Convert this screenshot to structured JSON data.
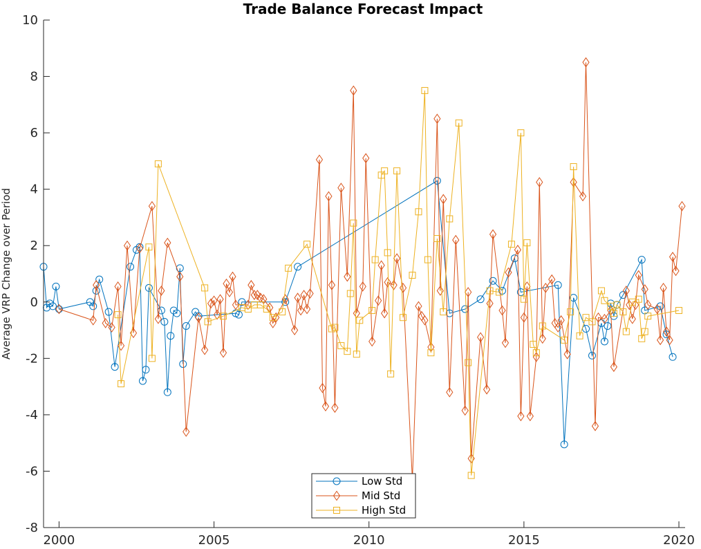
{
  "chart_data": {
    "type": "line",
    "title": "Trade Balance Forecast Impact",
    "xlabel": "",
    "ylabel": "Average VRP Change over Period",
    "xlim": [
      1999.5,
      2020.2
    ],
    "ylim": [
      -8,
      10
    ],
    "x_ticks": [
      2000,
      2005,
      2010,
      2015,
      2020
    ],
    "x_tick_labels": [
      "2000",
      "2005",
      "2010",
      "2015",
      "2020"
    ],
    "y_ticks": [
      -8,
      -6,
      -4,
      -2,
      0,
      2,
      4,
      6,
      8,
      10
    ],
    "y_tick_labels": [
      "-8",
      "-6",
      "-4",
      "-2",
      "0",
      "2",
      "4",
      "6",
      "8",
      "10"
    ],
    "grid": false,
    "legend_position": "bottom-center",
    "series": [
      {
        "name": "Low Std",
        "color": "#0072BD",
        "marker": "circle",
        "points": [
          [
            1999.5,
            1.25
          ],
          [
            1999.6,
            -0.2
          ],
          [
            1999.7,
            -0.05
          ],
          [
            1999.8,
            -0.15
          ],
          [
            1999.9,
            0.55
          ],
          [
            2000.0,
            -0.25
          ],
          [
            2001.0,
            0.0
          ],
          [
            2001.1,
            -0.15
          ],
          [
            2001.2,
            0.4
          ],
          [
            2001.3,
            0.8
          ],
          [
            2001.6,
            -0.35
          ],
          [
            2001.8,
            -2.3
          ],
          [
            2002.3,
            1.25
          ],
          [
            2002.5,
            1.85
          ],
          [
            2002.6,
            1.95
          ],
          [
            2002.7,
            -2.8
          ],
          [
            2002.8,
            -2.4
          ],
          [
            2002.9,
            0.5
          ],
          [
            2003.3,
            -0.3
          ],
          [
            2003.4,
            -0.7
          ],
          [
            2003.5,
            -3.2
          ],
          [
            2003.6,
            -1.2
          ],
          [
            2003.7,
            -0.3
          ],
          [
            2003.8,
            -0.4
          ],
          [
            2003.9,
            1.2
          ],
          [
            2004.0,
            -2.2
          ],
          [
            2004.1,
            -0.85
          ],
          [
            2004.4,
            -0.35
          ],
          [
            2004.5,
            -0.5
          ],
          [
            2005.7,
            -0.4
          ],
          [
            2005.8,
            -0.45
          ],
          [
            2005.9,
            0.0
          ],
          [
            2007.3,
            0.0
          ],
          [
            2007.7,
            1.25
          ],
          [
            2012.2,
            4.3
          ],
          [
            2012.6,
            -0.4
          ],
          [
            2013.1,
            -0.25
          ],
          [
            2013.6,
            0.1
          ],
          [
            2014.0,
            0.75
          ],
          [
            2014.3,
            0.4
          ],
          [
            2014.7,
            1.55
          ],
          [
            2014.9,
            0.35
          ],
          [
            2016.1,
            0.6
          ],
          [
            2016.3,
            -5.05
          ],
          [
            2016.6,
            0.15
          ],
          [
            2017.0,
            -0.95
          ],
          [
            2017.2,
            -1.9
          ],
          [
            2017.5,
            -0.75
          ],
          [
            2017.6,
            -1.4
          ],
          [
            2017.7,
            -0.85
          ],
          [
            2017.8,
            -0.05
          ],
          [
            2017.9,
            -0.5
          ],
          [
            2018.0,
            -0.1
          ],
          [
            2018.2,
            0.25
          ],
          [
            2018.8,
            1.5
          ],
          [
            2018.9,
            -0.3
          ],
          [
            2019.4,
            -0.15
          ],
          [
            2019.6,
            -1.15
          ],
          [
            2019.8,
            -1.95
          ]
        ]
      },
      {
        "name": "Mid Std",
        "color": "#D95319",
        "marker": "diamond",
        "points": [
          [
            2000.0,
            -0.25
          ],
          [
            2001.1,
            -0.65
          ],
          [
            2001.2,
            0.6
          ],
          [
            2001.5,
            -0.75
          ],
          [
            2001.7,
            -0.9
          ],
          [
            2001.9,
            0.55
          ],
          [
            2002.0,
            -1.55
          ],
          [
            2002.2,
            2.0
          ],
          [
            2002.4,
            -1.1
          ],
          [
            2002.6,
            1.9
          ],
          [
            2003.0,
            3.4
          ],
          [
            2003.2,
            -0.6
          ],
          [
            2003.3,
            0.4
          ],
          [
            2003.5,
            2.1
          ],
          [
            2003.9,
            0.9
          ],
          [
            2004.1,
            -4.6
          ],
          [
            2004.5,
            -0.55
          ],
          [
            2004.7,
            -1.7
          ],
          [
            2004.9,
            -0.05
          ],
          [
            2005.0,
            0.05
          ],
          [
            2005.1,
            -0.45
          ],
          [
            2005.2,
            0.1
          ],
          [
            2005.3,
            -1.8
          ],
          [
            2005.4,
            0.65
          ],
          [
            2005.5,
            0.35
          ],
          [
            2005.6,
            0.9
          ],
          [
            2005.7,
            -0.1
          ],
          [
            2006.1,
            -0.1
          ],
          [
            2006.2,
            0.6
          ],
          [
            2006.3,
            0.25
          ],
          [
            2006.4,
            0.25
          ],
          [
            2006.5,
            0.15
          ],
          [
            2006.6,
            0.1
          ],
          [
            2006.8,
            -0.2
          ],
          [
            2006.9,
            -0.75
          ],
          [
            2007.0,
            -0.55
          ],
          [
            2007.3,
            0.1
          ],
          [
            2007.6,
            -1.0
          ],
          [
            2007.7,
            0.15
          ],
          [
            2007.8,
            -0.3
          ],
          [
            2007.9,
            0.25
          ],
          [
            2008.0,
            -0.25
          ],
          [
            2008.1,
            0.3
          ],
          [
            2008.4,
            5.05
          ],
          [
            2008.5,
            -3.05
          ],
          [
            2008.6,
            -3.7
          ],
          [
            2008.7,
            3.75
          ],
          [
            2008.8,
            0.6
          ],
          [
            2008.9,
            -3.75
          ],
          [
            2009.1,
            4.05
          ],
          [
            2009.3,
            0.9
          ],
          [
            2009.5,
            7.5
          ],
          [
            2009.6,
            -0.4
          ],
          [
            2009.8,
            0.55
          ],
          [
            2009.9,
            5.1
          ],
          [
            2010.1,
            -1.4
          ],
          [
            2010.3,
            0.05
          ],
          [
            2010.4,
            1.3
          ],
          [
            2010.5,
            -0.4
          ],
          [
            2010.6,
            0.7
          ],
          [
            2010.8,
            0.6
          ],
          [
            2010.9,
            1.55
          ],
          [
            2011.1,
            0.5
          ],
          [
            2011.4,
            -6.3
          ],
          [
            2011.6,
            -0.15
          ],
          [
            2011.7,
            -0.5
          ],
          [
            2011.8,
            -0.65
          ],
          [
            2012.0,
            -1.6
          ],
          [
            2012.2,
            6.5
          ],
          [
            2012.3,
            0.4
          ],
          [
            2012.4,
            3.65
          ],
          [
            2012.6,
            -3.2
          ],
          [
            2012.8,
            2.2
          ],
          [
            2013.1,
            -3.85
          ],
          [
            2013.2,
            0.35
          ],
          [
            2013.3,
            -5.55
          ],
          [
            2013.6,
            -1.25
          ],
          [
            2013.8,
            -3.1
          ],
          [
            2013.9,
            -0.05
          ],
          [
            2014.0,
            2.4
          ],
          [
            2014.3,
            -0.3
          ],
          [
            2014.4,
            -1.45
          ],
          [
            2014.5,
            1.05
          ],
          [
            2014.8,
            1.85
          ],
          [
            2014.9,
            -4.05
          ],
          [
            2015.0,
            -0.55
          ],
          [
            2015.1,
            0.55
          ],
          [
            2015.2,
            -4.05
          ],
          [
            2015.4,
            -1.95
          ],
          [
            2015.5,
            4.25
          ],
          [
            2015.6,
            -1.3
          ],
          [
            2015.7,
            0.5
          ],
          [
            2015.9,
            0.8
          ],
          [
            2016.0,
            -0.75
          ],
          [
            2016.1,
            -0.9
          ],
          [
            2016.2,
            -0.65
          ],
          [
            2016.4,
            -1.85
          ],
          [
            2016.6,
            4.25
          ],
          [
            2016.9,
            3.75
          ],
          [
            2017.0,
            8.5
          ],
          [
            2017.3,
            -4.4
          ],
          [
            2017.4,
            -0.55
          ],
          [
            2017.6,
            -0.6
          ],
          [
            2017.8,
            -0.3
          ],
          [
            2017.9,
            -2.3
          ],
          [
            2018.3,
            0.4
          ],
          [
            2018.4,
            -0.1
          ],
          [
            2018.5,
            -0.6
          ],
          [
            2018.6,
            -0.1
          ],
          [
            2018.7,
            0.95
          ],
          [
            2018.9,
            0.45
          ],
          [
            2019.0,
            -0.1
          ],
          [
            2019.3,
            -0.25
          ],
          [
            2019.4,
            -1.35
          ],
          [
            2019.5,
            0.5
          ],
          [
            2019.6,
            -1.05
          ],
          [
            2019.7,
            -1.35
          ],
          [
            2019.8,
            1.6
          ],
          [
            2019.9,
            1.1
          ],
          [
            2020.1,
            3.4
          ]
        ]
      },
      {
        "name": "High Std",
        "color": "#EDB120",
        "marker": "square",
        "points": [
          [
            2001.9,
            -0.45
          ],
          [
            2002.0,
            -2.9
          ],
          [
            2002.9,
            1.95
          ],
          [
            2003.0,
            -2.0
          ],
          [
            2003.2,
            4.9
          ],
          [
            2004.7,
            0.5
          ],
          [
            2004.8,
            -0.7
          ],
          [
            2005.3,
            -0.5
          ],
          [
            2005.9,
            -0.2
          ],
          [
            2006.1,
            -0.25
          ],
          [
            2006.3,
            -0.1
          ],
          [
            2006.5,
            -0.1
          ],
          [
            2006.7,
            -0.25
          ],
          [
            2006.9,
            -0.55
          ],
          [
            2007.2,
            -0.35
          ],
          [
            2007.4,
            1.2
          ],
          [
            2008.0,
            2.05
          ],
          [
            2008.8,
            -0.95
          ],
          [
            2008.9,
            -0.9
          ],
          [
            2009.1,
            -1.55
          ],
          [
            2009.3,
            -1.75
          ],
          [
            2009.4,
            0.3
          ],
          [
            2009.5,
            2.8
          ],
          [
            2009.6,
            -1.85
          ],
          [
            2009.7,
            -0.65
          ],
          [
            2010.1,
            -0.3
          ],
          [
            2010.2,
            1.5
          ],
          [
            2010.4,
            4.5
          ],
          [
            2010.5,
            4.65
          ],
          [
            2010.6,
            1.75
          ],
          [
            2010.7,
            -2.55
          ],
          [
            2010.9,
            4.65
          ],
          [
            2011.1,
            -0.55
          ],
          [
            2011.4,
            0.95
          ],
          [
            2011.6,
            3.2
          ],
          [
            2011.8,
            7.5
          ],
          [
            2011.9,
            1.5
          ],
          [
            2012.0,
            -1.8
          ],
          [
            2012.2,
            2.25
          ],
          [
            2012.4,
            -0.35
          ],
          [
            2012.6,
            2.95
          ],
          [
            2012.9,
            6.35
          ],
          [
            2013.2,
            -2.15
          ],
          [
            2013.3,
            -6.15
          ],
          [
            2013.9,
            0.4
          ],
          [
            2014.2,
            0.35
          ],
          [
            2014.6,
            2.05
          ],
          [
            2014.9,
            6.0
          ],
          [
            2015.0,
            0.1
          ],
          [
            2015.1,
            2.1
          ],
          [
            2015.3,
            -1.5
          ],
          [
            2015.4,
            -1.8
          ],
          [
            2015.6,
            -0.85
          ],
          [
            2016.3,
            -1.35
          ],
          [
            2016.5,
            -0.35
          ],
          [
            2016.6,
            4.8
          ],
          [
            2016.8,
            -1.2
          ],
          [
            2017.0,
            -0.55
          ],
          [
            2017.2,
            -0.7
          ],
          [
            2017.5,
            0.4
          ],
          [
            2017.6,
            0.05
          ],
          [
            2017.8,
            -0.15
          ],
          [
            2017.9,
            -0.4
          ],
          [
            2018.0,
            -0.1
          ],
          [
            2018.2,
            -0.35
          ],
          [
            2018.3,
            -1.05
          ],
          [
            2018.5,
            0.0
          ],
          [
            2018.7,
            0.1
          ],
          [
            2018.8,
            -1.3
          ],
          [
            2018.9,
            -1.05
          ],
          [
            2019.0,
            -0.5
          ],
          [
            2020.0,
            -0.3
          ]
        ]
      }
    ]
  }
}
